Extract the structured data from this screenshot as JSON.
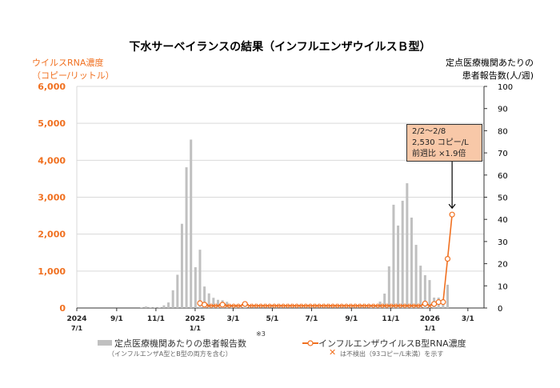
{
  "title": "下水サーベイランスの結果（インフルエンザウイルスＢ型）",
  "left_axis_label": [
    "ウイルスRNA濃度",
    "（コピー/リットル）"
  ],
  "right_axis_label": [
    "定点医療機関あたりの",
    "患者報告数(人/週)"
  ],
  "annotation": {
    "lines": [
      "2/2～2/8",
      "2,530 コピー/L",
      "前週比 ×1.9倍"
    ]
  },
  "legend": {
    "bars": {
      "label": "定点医療機関あたりの患者報告数",
      "note_mark": "※3",
      "sub": "（インフルエンザA型とB型の両方を含む）"
    },
    "line": {
      "label": "インフルエンザウイルスB型RNA濃度",
      "sub_mark": "✕",
      "sub": "は不検出（93コピー/L未満）を示す"
    }
  },
  "chart_data": {
    "type": "bar+line",
    "x_start": "2024-07-01",
    "x_unit": "week",
    "x_ticks": [
      {
        "date": "2024-07-01",
        "label": "2024",
        "sub": "7/1"
      },
      {
        "date": "2024-09-01",
        "label": "9/1",
        "sub": ""
      },
      {
        "date": "2024-11-01",
        "label": "11/1",
        "sub": ""
      },
      {
        "date": "2025-01-01",
        "label": "2025",
        "sub": "1/1"
      },
      {
        "date": "2025-03-01",
        "label": "3/1",
        "sub": ""
      },
      {
        "date": "2025-05-01",
        "label": "5/1",
        "sub": ""
      },
      {
        "date": "2025-07-01",
        "label": "7/1",
        "sub": ""
      },
      {
        "date": "2025-09-01",
        "label": "9/1",
        "sub": ""
      },
      {
        "date": "2025-11-01",
        "label": "11/1",
        "sub": ""
      },
      {
        "date": "2026-01-01",
        "label": "2026",
        "sub": "1/1"
      },
      {
        "date": "2026-03-01",
        "label": "3/1",
        "sub": ""
      }
    ],
    "left_axis": {
      "ylim": [
        0,
        6000
      ],
      "ticks": [
        "0",
        "1,000",
        "2,000",
        "3,000",
        "4,000",
        "5,000",
        "6,000"
      ],
      "color": "#f07020"
    },
    "right_axis": {
      "ylim": [
        0,
        100
      ],
      "ticks": [
        "0",
        "10",
        "20",
        "30",
        "40",
        "50",
        "60",
        "70",
        "80",
        "90",
        "100"
      ]
    },
    "grid": true,
    "bar_color": "#c0c0c0",
    "line_color": "#f07020",
    "bars": [
      {
        "week": "2024-10-07",
        "value": 0.3
      },
      {
        "week": "2024-10-14",
        "value": 0.7
      },
      {
        "week": "2024-10-21",
        "value": 0.3
      },
      {
        "week": "2024-10-28",
        "value": 0.3
      },
      {
        "week": "2024-11-04",
        "value": 0.3
      },
      {
        "week": "2024-11-11",
        "value": 1.2
      },
      {
        "week": "2024-11-18",
        "value": 2.5
      },
      {
        "week": "2024-11-25",
        "value": 8
      },
      {
        "week": "2024-12-02",
        "value": 15
      },
      {
        "week": "2024-12-09",
        "value": 38
      },
      {
        "week": "2024-12-16",
        "value": 63.5
      },
      {
        "week": "2024-12-23",
        "value": 76
      },
      {
        "week": "2024-12-30",
        "value": 18.4
      },
      {
        "week": "2025-01-06",
        "value": 26.3
      },
      {
        "week": "2025-01-13",
        "value": 9.7
      },
      {
        "week": "2025-01-20",
        "value": 6.6
      },
      {
        "week": "2025-01-27",
        "value": 4.6
      },
      {
        "week": "2025-02-03",
        "value": 3.7
      },
      {
        "week": "2025-02-10",
        "value": 3.5
      },
      {
        "week": "2025-02-17",
        "value": 2.8
      },
      {
        "week": "2025-02-24",
        "value": 1.5
      },
      {
        "week": "2025-03-03",
        "value": 1.2
      },
      {
        "week": "2025-03-10",
        "value": 0.8
      },
      {
        "week": "2025-03-17",
        "value": 0.5
      },
      {
        "week": "2025-09-29",
        "value": 0.5
      },
      {
        "week": "2025-10-06",
        "value": 1
      },
      {
        "week": "2025-10-13",
        "value": 2.9
      },
      {
        "week": "2025-10-20",
        "value": 6.5
      },
      {
        "week": "2025-10-27",
        "value": 18.8
      },
      {
        "week": "2025-11-03",
        "value": 46.6
      },
      {
        "week": "2025-11-10",
        "value": 37.2
      },
      {
        "week": "2025-11-17",
        "value": 48.4
      },
      {
        "week": "2025-11-24",
        "value": 56.3
      },
      {
        "week": "2025-12-01",
        "value": 40.8
      },
      {
        "week": "2025-12-08",
        "value": 28.5
      },
      {
        "week": "2025-12-15",
        "value": 19.1
      },
      {
        "week": "2025-12-22",
        "value": 14.8
      },
      {
        "week": "2025-12-29",
        "value": 12.6
      },
      {
        "week": "2026-01-05",
        "value": 4.7
      },
      {
        "week": "2026-01-12",
        "value": 4.7
      },
      {
        "week": "2026-01-19",
        "value": 4
      },
      {
        "week": "2026-01-26",
        "value": 10.5
      }
    ],
    "line": {
      "detected": [
        {
          "week": "2025-01-06",
          "value": 130
        },
        {
          "week": "2025-01-13",
          "value": 90
        },
        {
          "week": "2025-02-10",
          "value": 90
        },
        {
          "week": "2025-03-17",
          "value": 110
        },
        {
          "week": "2025-12-22",
          "value": 120
        },
        {
          "week": "2026-01-05",
          "value": 110
        },
        {
          "week": "2026-01-12",
          "value": 160
        },
        {
          "week": "2026-01-19",
          "value": 160
        },
        {
          "week": "2026-01-26",
          "value": 1330
        },
        {
          "week": "2026-02-02",
          "value": 2530
        }
      ],
      "not_detected_range": [
        {
          "from": "2025-01-20",
          "to": "2026-01-05",
          "except": [
            "2025-02-10",
            "2025-03-17",
            "2025-12-22",
            "2026-01-05"
          ]
        }
      ]
    }
  }
}
